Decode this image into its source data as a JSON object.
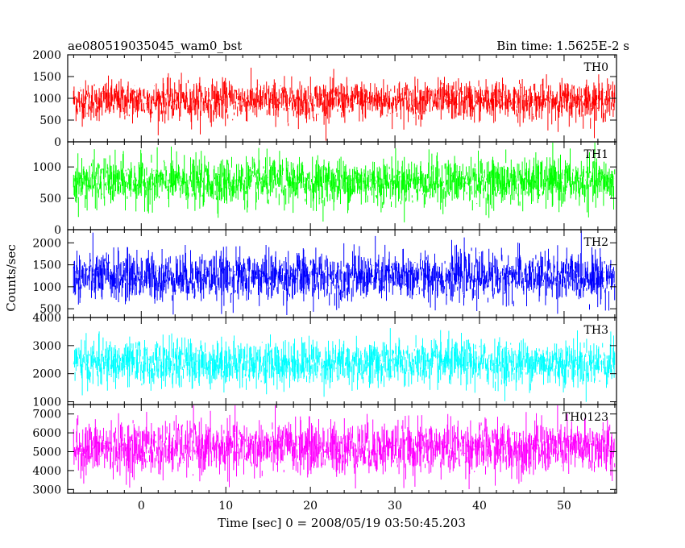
{
  "header": {
    "title": "ae080519035045_wam0_bst",
    "bin_time": "Bin time: 1.5625E-2 s"
  },
  "chart_data": {
    "type": "line",
    "title": "ae080519035045_wam0_bst",
    "xlabel": "Time [sec] 0 = 2008/05/19 03:50:45.203",
    "ylabel": "Counts/sec",
    "xlim": [
      -8.7,
      56.2
    ],
    "xticks": [
      0,
      10,
      20,
      30,
      40,
      50
    ],
    "grid": false,
    "panels": [
      {
        "name": "TH0",
        "color": "#ff0000",
        "ylim": [
          0,
          2000
        ],
        "yticks": [
          0,
          500,
          1000,
          1500,
          2000
        ],
        "mean": 950,
        "spread": 230,
        "data_range": [
          -8,
          56
        ]
      },
      {
        "name": "TH1",
        "color": "#00ff00",
        "ylim": [
          0,
          1400
        ],
        "yticks": [
          0,
          500,
          1000
        ],
        "mean": 760,
        "spread": 190,
        "data_range": [
          -8,
          56
        ]
      },
      {
        "name": "TH2",
        "color": "#0000ff",
        "ylim": [
          300,
          2300
        ],
        "yticks": [
          500,
          1000,
          1500,
          2000
        ],
        "mean": 1230,
        "spread": 280,
        "data_range": [
          -8,
          56
        ]
      },
      {
        "name": "TH3",
        "color": "#00ffff",
        "ylim": [
          900,
          4000
        ],
        "yticks": [
          1000,
          2000,
          3000,
          4000
        ],
        "mean": 2380,
        "spread": 410,
        "data_range": [
          -8,
          56
        ]
      },
      {
        "name": "TH0123",
        "color": "#ff00ff",
        "ylim": [
          2800,
          7500
        ],
        "yticks": [
          3000,
          4000,
          5000,
          6000,
          7000
        ],
        "mean": 5200,
        "spread": 700,
        "data_range": [
          -8,
          56
        ]
      }
    ]
  }
}
